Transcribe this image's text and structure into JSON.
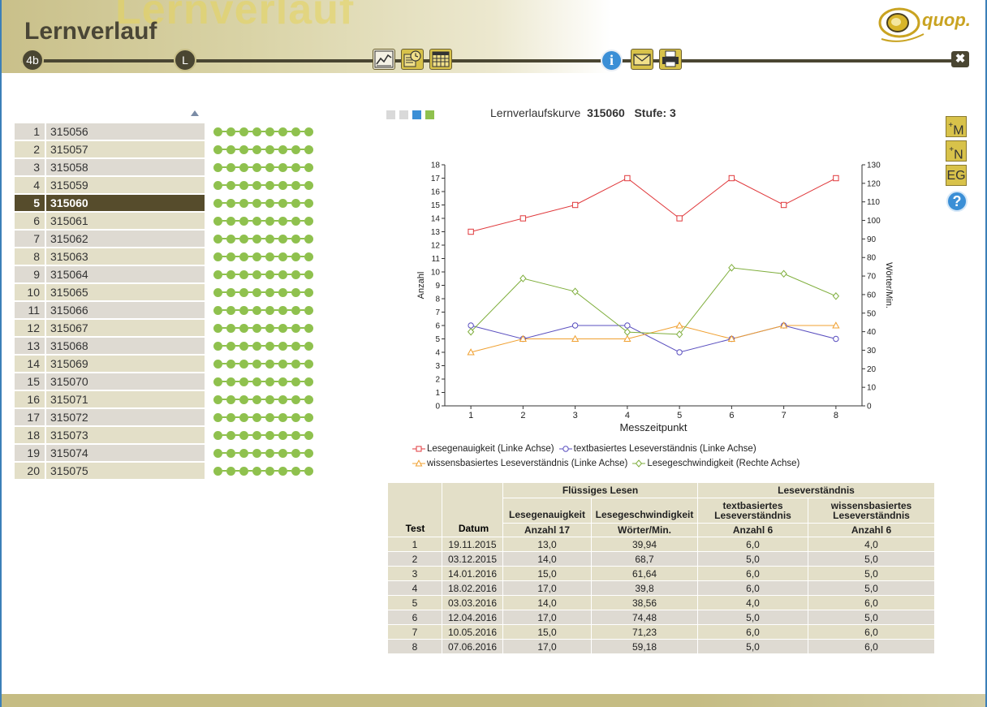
{
  "header": {
    "title": "Lernverlauf",
    "watermark": "Lernverlauf",
    "class_badge": "4b",
    "teacher_badge": "L",
    "logo_text": "quop.",
    "info_label": "i",
    "close_label": "✖"
  },
  "toolbar": {
    "icons": [
      "chart-icon",
      "clock-sheet-icon",
      "table-icon",
      "info-icon",
      "mail-icon",
      "print-icon",
      "close-icon"
    ]
  },
  "students": [
    {
      "n": "1",
      "code": "315056"
    },
    {
      "n": "2",
      "code": "315057"
    },
    {
      "n": "3",
      "code": "315058"
    },
    {
      "n": "4",
      "code": "315059"
    },
    {
      "n": "5",
      "code": "315060",
      "selected": true
    },
    {
      "n": "6",
      "code": "315061"
    },
    {
      "n": "7",
      "code": "315062"
    },
    {
      "n": "8",
      "code": "315063"
    },
    {
      "n": "9",
      "code": "315064"
    },
    {
      "n": "10",
      "code": "315065"
    },
    {
      "n": "11",
      "code": "315066"
    },
    {
      "n": "12",
      "code": "315067"
    },
    {
      "n": "13",
      "code": "315068"
    },
    {
      "n": "14",
      "code": "315069"
    },
    {
      "n": "15",
      "code": "315070"
    },
    {
      "n": "16",
      "code": "315071"
    },
    {
      "n": "17",
      "code": "315072"
    },
    {
      "n": "18",
      "code": "315073"
    },
    {
      "n": "19",
      "code": "315074"
    },
    {
      "n": "20",
      "code": "315075"
    }
  ],
  "progress_dots_per_row": 8,
  "view_switch": {
    "colors": [
      "#d9d9d9",
      "#d9d9d9",
      "#3b8fd6",
      "#8fc14e"
    ],
    "active_index": 2
  },
  "chart_title": {
    "label": "Lernverlaufskurve",
    "student": "315060",
    "level": "Stufe: 3"
  },
  "side_buttons": [
    {
      "label": "M",
      "sup": "+"
    },
    {
      "label": "N",
      "sup": "+"
    },
    {
      "label": "EG",
      "sup": ""
    }
  ],
  "help_label": "?",
  "chart_data": {
    "type": "line",
    "x": [
      1,
      2,
      3,
      4,
      5,
      6,
      7,
      8
    ],
    "xlabel": "Messzeitpunkt",
    "ylabel": "Anzahl",
    "y2label": "Wörter/Min.",
    "ylim": [
      0,
      18
    ],
    "y2lim": [
      0,
      130
    ],
    "yticks": [
      0,
      1,
      2,
      3,
      4,
      5,
      6,
      7,
      8,
      9,
      10,
      11,
      12,
      13,
      14,
      15,
      16,
      17,
      18
    ],
    "y2ticks": [
      0,
      10,
      20,
      30,
      40,
      50,
      60,
      70,
      80,
      90,
      100,
      110,
      120,
      130
    ],
    "grid": false,
    "legend_position": "bottom",
    "series": [
      {
        "name": "Lesegenauigkeit (Linke Achse)",
        "axis": "left",
        "color": "#e0393c",
        "marker": "square",
        "values": [
          13,
          14,
          15,
          17,
          14,
          17,
          15,
          17
        ]
      },
      {
        "name": "textbasiertes Leseverständnis (Linke Achse)",
        "axis": "left",
        "color": "#5a4fbf",
        "marker": "circle",
        "values": [
          6,
          5,
          6,
          6,
          4,
          5,
          6,
          5
        ]
      },
      {
        "name": "wissensbasiertes Leseverständnis (Linke Achse)",
        "axis": "left",
        "color": "#f0a030",
        "marker": "triangle",
        "values": [
          4,
          5,
          5,
          5,
          6,
          5,
          6,
          6
        ]
      },
      {
        "name": "Lesegeschwindigkeit (Rechte Achse)",
        "axis": "right",
        "color": "#7fae3c",
        "marker": "diamond",
        "values": [
          39.94,
          68.7,
          61.64,
          39.8,
          38.56,
          74.48,
          71.23,
          59.18
        ]
      }
    ]
  },
  "table": {
    "group_headers": {
      "fluency": "Flüssiges Lesen",
      "comprehension": "Leseverständnis"
    },
    "sub_headers": {
      "accuracy": "Lesegenauigkeit",
      "speed": "Lesegeschwindigkeit",
      "text_based": "textbasiertes Leseverständnis",
      "knowledge_based": "wissensbasiertes Leseverständnis"
    },
    "unit_headers": {
      "test": "Test",
      "date": "Datum",
      "accuracy": "Anzahl 17",
      "speed": "Wörter/Min.",
      "text_based": "Anzahl 6",
      "knowledge_based": "Anzahl 6"
    },
    "rows": [
      [
        "1",
        "19.11.2015",
        "13,0",
        "39,94",
        "6,0",
        "4,0"
      ],
      [
        "2",
        "03.12.2015",
        "14,0",
        "68,7",
        "5,0",
        "5,0"
      ],
      [
        "3",
        "14.01.2016",
        "15,0",
        "61,64",
        "6,0",
        "5,0"
      ],
      [
        "4",
        "18.02.2016",
        "17,0",
        "39,8",
        "6,0",
        "5,0"
      ],
      [
        "5",
        "03.03.2016",
        "14,0",
        "38,56",
        "4,0",
        "6,0"
      ],
      [
        "6",
        "12.04.2016",
        "17,0",
        "74,48",
        "5,0",
        "5,0"
      ],
      [
        "7",
        "10.05.2016",
        "15,0",
        "71,23",
        "6,0",
        "6,0"
      ],
      [
        "8",
        "07.06.2016",
        "17,0",
        "59,18",
        "5,0",
        "6,0"
      ]
    ]
  }
}
